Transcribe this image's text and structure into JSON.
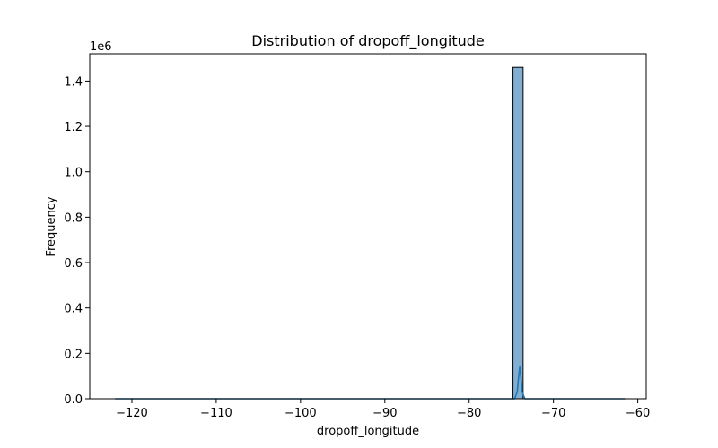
{
  "chart_data": {
    "type": "bar",
    "title": "Distribution of dropoff_longitude",
    "xlabel": "dropoff_longitude",
    "ylabel": "Frequency",
    "y_offset_text": "1e6",
    "xlim": [
      -125,
      -59
    ],
    "ylim": [
      0,
      1520000
    ],
    "x_ticks": [
      -120,
      -110,
      -100,
      -90,
      -80,
      -70,
      -60
    ],
    "x_tick_labels": [
      "−120",
      "−110",
      "−100",
      "−90",
      "−80",
      "−70",
      "−60"
    ],
    "y_ticks": [
      0,
      200000,
      400000,
      600000,
      800000,
      1000000,
      1200000,
      1400000
    ],
    "y_tick_labels": [
      "0.0",
      "0.2",
      "0.4",
      "0.6",
      "0.8",
      "1.0",
      "1.2",
      "1.4"
    ],
    "histogram": {
      "bins": [
        {
          "x_start": -74.8,
          "x_end": -73.6,
          "count": 1460000
        }
      ],
      "bar_color": "#82aed1",
      "edge_color": "#000000"
    },
    "kde": {
      "name": "",
      "color": "#1f77b4",
      "points": [
        [
          -122,
          0
        ],
        [
          -100,
          0
        ],
        [
          -80,
          0
        ],
        [
          -75,
          0
        ],
        [
          -74.6,
          0
        ],
        [
          -74.3,
          30000
        ],
        [
          -74.15,
          90000
        ],
        [
          -74.0,
          140000
        ],
        [
          -73.85,
          90000
        ],
        [
          -73.7,
          30000
        ],
        [
          -73.4,
          0
        ],
        [
          -70,
          0
        ],
        [
          -61.5,
          0
        ]
      ]
    },
    "grid": false,
    "legend": "none"
  }
}
